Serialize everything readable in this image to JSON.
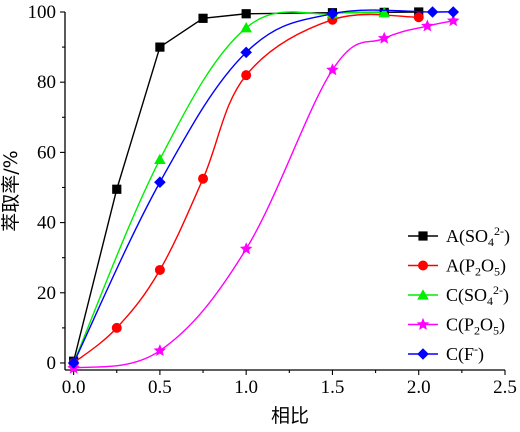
{
  "chart_data": {
    "type": "line",
    "xlabel": "相比",
    "ylabel": "萃取率/%",
    "xlim": [
      -0.05,
      2.5
    ],
    "ylim": [
      -2,
      100
    ],
    "xticks": [
      0.0,
      0.5,
      1.0,
      1.5,
      2.0,
      2.5
    ],
    "xtick_labels": [
      "0.0",
      "0.5",
      "1.0",
      "1.5",
      "2.0",
      "2.5"
    ],
    "yticks": [
      0,
      20,
      40,
      60,
      80,
      100
    ],
    "ytick_labels": [
      "0",
      "20",
      "40",
      "60",
      "80",
      "100"
    ],
    "grid": false,
    "legend_position": "bottom-right",
    "series": [
      {
        "name": "A(SO4²⁻)",
        "legend": {
          "base": "A(SO",
          "sub": "4",
          "sup": "2-",
          "tail": ")"
        },
        "color": "#000000",
        "marker": "square",
        "points": [
          [
            0,
            0.5
          ],
          [
            0.25,
            49.5
          ],
          [
            0.5,
            90
          ],
          [
            0.75,
            98.2
          ],
          [
            1.0,
            99.5
          ],
          [
            1.5,
            99.8
          ],
          [
            1.8,
            99.9
          ],
          [
            2.0,
            100
          ]
        ]
      },
      {
        "name": "A(P2O5)",
        "legend": {
          "base": "A(P",
          "sub": "2",
          "mid": "O",
          "sub2": "5",
          "tail": ")"
        },
        "color": "#ff0000",
        "marker": "circle",
        "points": [
          [
            0,
            0
          ],
          [
            0.25,
            10
          ],
          [
            0.5,
            26.5
          ],
          [
            0.75,
            52.5
          ],
          [
            1.0,
            82
          ],
          [
            1.5,
            97.8
          ],
          [
            2.0,
            98.5
          ]
        ]
      },
      {
        "name": "C(SO4²⁻)",
        "legend": {
          "base": "C(SO",
          "sub": "4",
          "sup": "2-",
          "tail": ")"
        },
        "color": "#00ee00",
        "marker": "triangle",
        "points": [
          [
            0,
            0
          ],
          [
            0.5,
            58
          ],
          [
            1.0,
            95.5
          ],
          [
            1.5,
            99.5
          ],
          [
            1.8,
            99.8
          ]
        ]
      },
      {
        "name": "C(P2O5)",
        "legend": {
          "base": "C(P",
          "sub": "2",
          "mid": "O",
          "sub2": "5",
          "tail": ")"
        },
        "color": "#ff00ff",
        "marker": "star",
        "points": [
          [
            0,
            -1.5
          ],
          [
            0.5,
            3.5
          ],
          [
            1.0,
            32.5
          ],
          [
            1.5,
            83.5
          ],
          [
            1.8,
            92.5
          ],
          [
            2.05,
            96
          ],
          [
            2.2,
            97.5
          ]
        ]
      },
      {
        "name": "C(F⁻)",
        "legend": {
          "base": "C(F",
          "sup": "-",
          "tail": ")"
        },
        "color": "#0000ff",
        "marker": "diamond",
        "points": [
          [
            0,
            0
          ],
          [
            0.5,
            51.5
          ],
          [
            1.0,
            88.5
          ],
          [
            1.5,
            99.5
          ],
          [
            2.08,
            100
          ],
          [
            2.2,
            100
          ]
        ]
      }
    ]
  }
}
